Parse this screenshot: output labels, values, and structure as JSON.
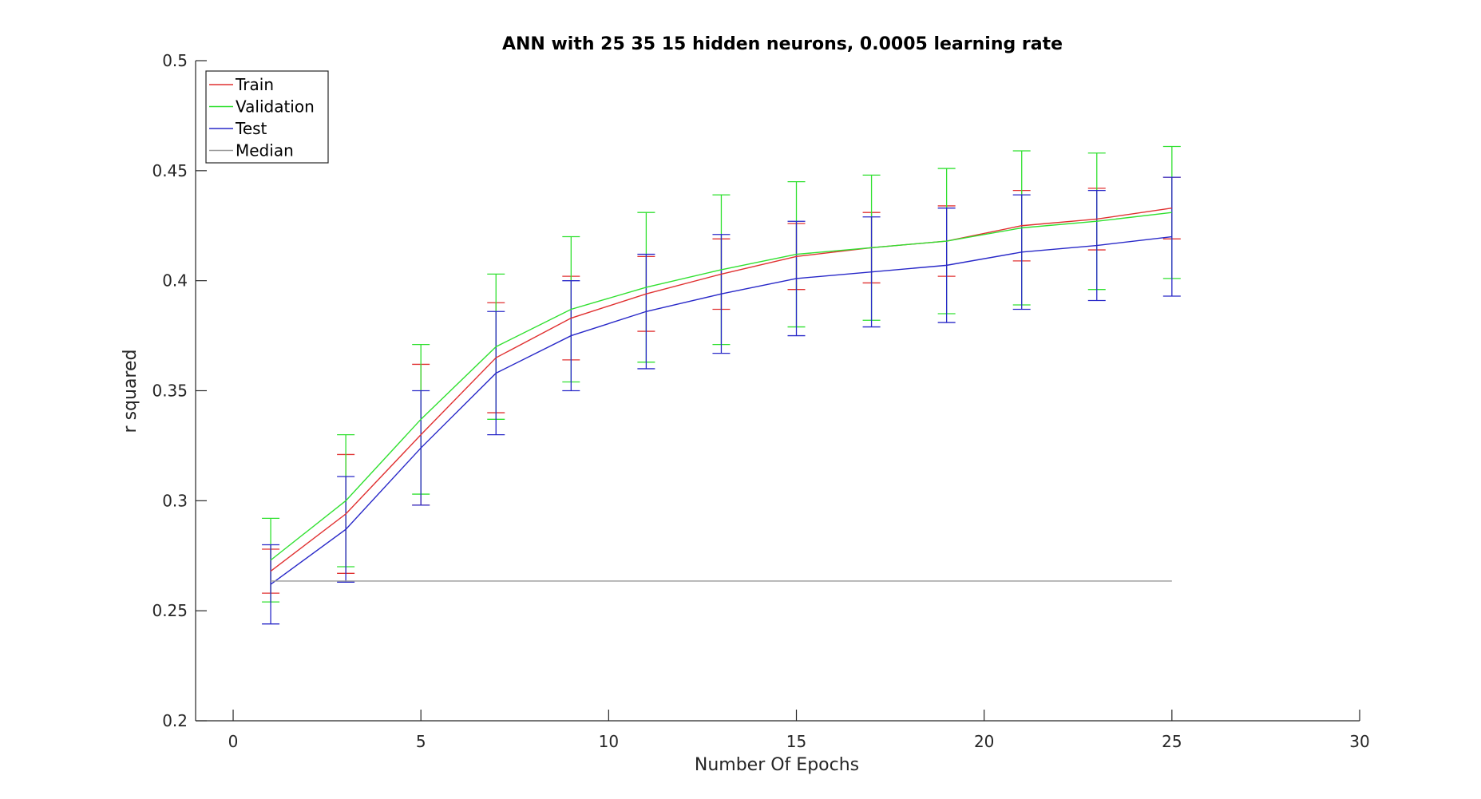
{
  "chart_data": {
    "type": "line",
    "title": "ANN with 25  35  15 hidden neurons, 0.0005 learning rate",
    "xlabel": "Number Of Epochs",
    "ylabel": "r squared",
    "xlim": [
      -1,
      30
    ],
    "ylim": [
      0.2,
      0.5
    ],
    "xticks": [
      0,
      5,
      10,
      15,
      20,
      25,
      30
    ],
    "yticks": [
      0.2,
      0.25,
      0.3,
      0.35,
      0.4,
      0.45,
      0.5
    ],
    "xtick_labels": [
      "0",
      "5",
      "10",
      "15",
      "20",
      "25",
      "30"
    ],
    "ytick_labels": [
      "0.2",
      "0.25",
      "0.3",
      "0.35",
      "0.4",
      "0.45",
      "0.5"
    ],
    "grid": false,
    "legend_position": "top-left",
    "x": [
      1,
      3,
      5,
      7,
      9,
      11,
      13,
      15,
      17,
      19,
      21,
      23,
      25
    ],
    "series": [
      {
        "name": "Train",
        "color": "#e03030",
        "values": [
          0.268,
          0.294,
          0.33,
          0.365,
          0.383,
          0.394,
          0.403,
          0.411,
          0.415,
          0.418,
          0.425,
          0.428,
          0.433
        ],
        "error": [
          0.01,
          0.027,
          0.032,
          0.025,
          0.019,
          0.017,
          0.016,
          0.015,
          0.016,
          0.016,
          0.016,
          0.014,
          0.014
        ]
      },
      {
        "name": "Validation",
        "color": "#30e030",
        "values": [
          0.273,
          0.3,
          0.337,
          0.37,
          0.387,
          0.397,
          0.405,
          0.412,
          0.415,
          0.418,
          0.424,
          0.427,
          0.431
        ],
        "error": [
          0.019,
          0.03,
          0.034,
          0.033,
          0.033,
          0.034,
          0.034,
          0.033,
          0.033,
          0.033,
          0.035,
          0.031,
          0.03
        ]
      },
      {
        "name": "Test",
        "color": "#2828c8",
        "values": [
          0.262,
          0.287,
          0.324,
          0.358,
          0.375,
          0.386,
          0.394,
          0.401,
          0.404,
          0.407,
          0.413,
          0.416,
          0.42
        ],
        "error": [
          0.018,
          0.024,
          0.026,
          0.028,
          0.025,
          0.026,
          0.027,
          0.026,
          0.025,
          0.026,
          0.026,
          0.025,
          0.027
        ]
      },
      {
        "name": "Median",
        "color": "#999999",
        "values": [
          0.2635,
          0.2635,
          0.2635,
          0.2635,
          0.2635,
          0.2635,
          0.2635,
          0.2635,
          0.2635,
          0.2635,
          0.2635,
          0.2635,
          0.2635
        ]
      }
    ]
  }
}
